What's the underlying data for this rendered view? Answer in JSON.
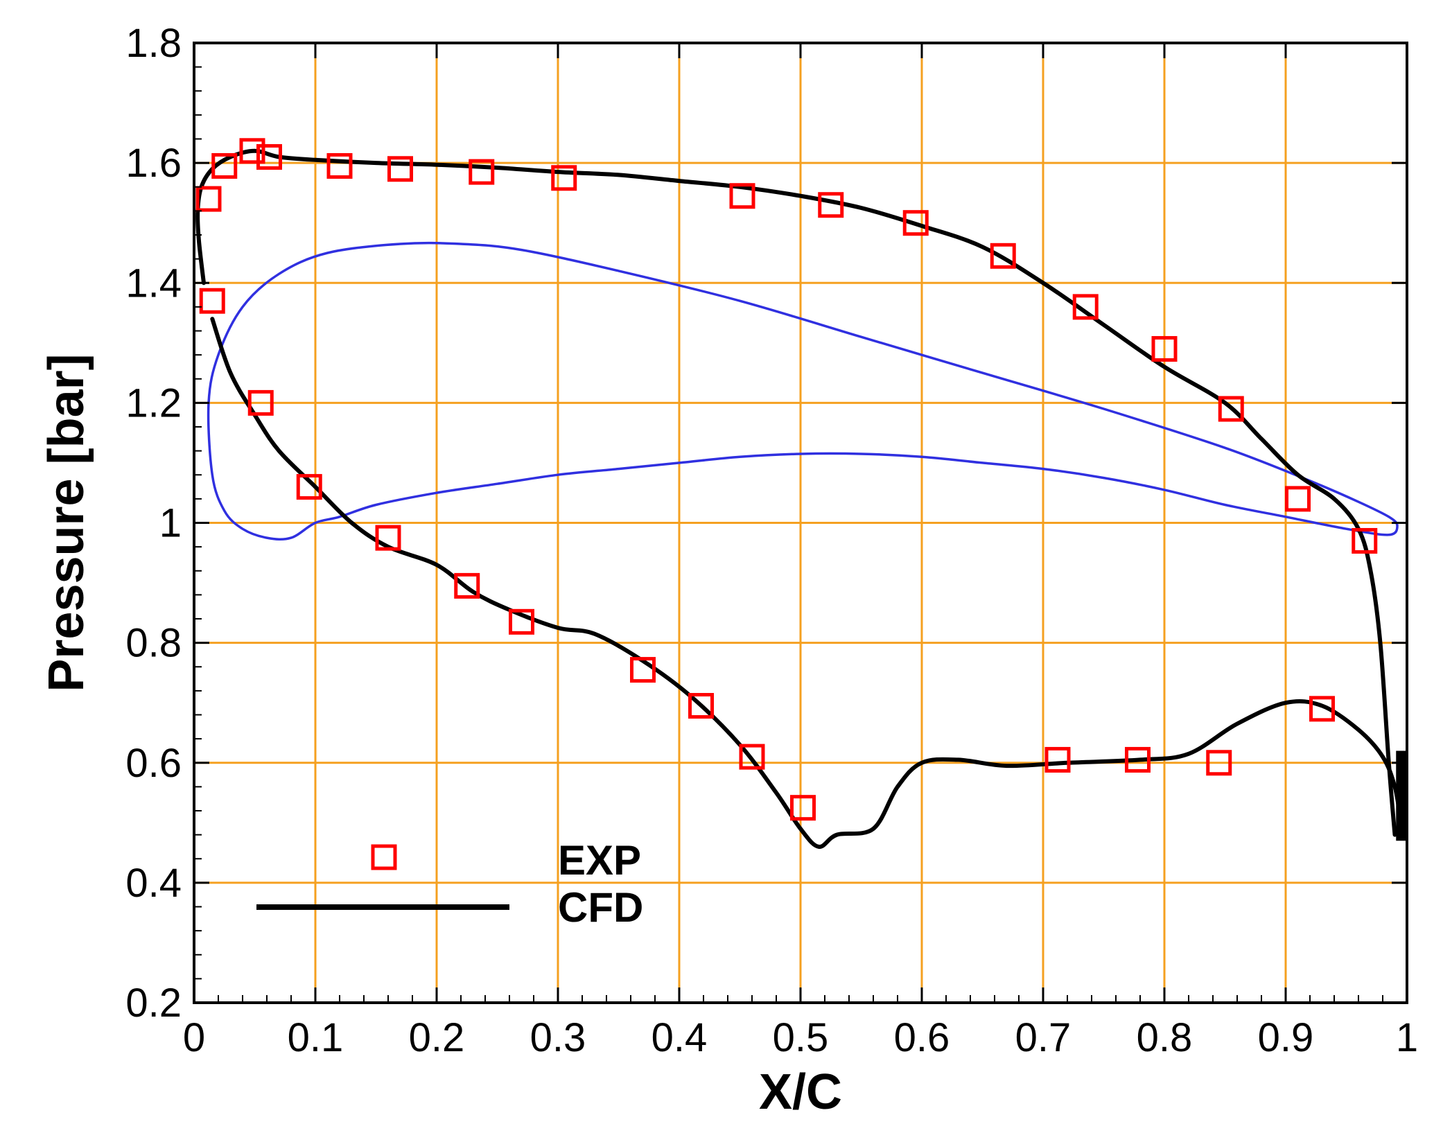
{
  "chart_data": {
    "type": "line",
    "title": "",
    "xlabel": "X/C",
    "ylabel": "Pressure [bar]",
    "xlim": [
      0,
      1
    ],
    "ylim": [
      0.2,
      1.8
    ],
    "x_ticks": [
      "0",
      "0.1",
      "0.2",
      "0.3",
      "0.4",
      "0.5",
      "0.6",
      "0.7",
      "0.8",
      "0.9",
      "1"
    ],
    "y_ticks": [
      "0.2",
      "0.4",
      "0.6",
      "0.8",
      "1",
      "1.2",
      "1.4",
      "1.6",
      "1.8"
    ],
    "grid": true,
    "legend_position": "bottom-left",
    "legend": [
      {
        "label": "EXP",
        "marker": "square",
        "color": "#ff0000"
      },
      {
        "label": "CFD",
        "marker": "line",
        "color": "#000000"
      }
    ],
    "colors": {
      "grid": "#f5a020",
      "exp": "#ff0000",
      "cfd": "#000000",
      "profile": "#3030e0"
    },
    "series": [
      {
        "name": "EXP",
        "style": "markers",
        "points": [
          [
            0.012,
            1.54
          ],
          [
            0.025,
            1.595
          ],
          [
            0.048,
            1.62
          ],
          [
            0.062,
            1.61
          ],
          [
            0.12,
            1.595
          ],
          [
            0.17,
            1.59
          ],
          [
            0.237,
            1.585
          ],
          [
            0.305,
            1.575
          ],
          [
            0.452,
            1.545
          ],
          [
            0.525,
            1.53
          ],
          [
            0.595,
            1.5
          ],
          [
            0.667,
            1.445
          ],
          [
            0.735,
            1.36
          ],
          [
            0.8,
            1.29
          ],
          [
            0.855,
            1.19
          ],
          [
            0.91,
            1.04
          ],
          [
            0.965,
            0.97
          ],
          [
            0.015,
            1.37
          ],
          [
            0.055,
            1.2
          ],
          [
            0.095,
            1.06
          ],
          [
            0.16,
            0.975
          ],
          [
            0.225,
            0.895
          ],
          [
            0.27,
            0.835
          ],
          [
            0.37,
            0.755
          ],
          [
            0.418,
            0.695
          ],
          [
            0.46,
            0.61
          ],
          [
            0.502,
            0.525
          ],
          [
            0.712,
            0.605
          ],
          [
            0.778,
            0.605
          ],
          [
            0.845,
            0.6
          ],
          [
            0.93,
            0.69
          ]
        ]
      },
      {
        "name": "CFD",
        "style": "line",
        "segments": [
          [
            [
              0.99,
              0.48
            ],
            [
              0.985,
              0.6
            ],
            [
              0.978,
              0.8
            ],
            [
              0.97,
              0.92
            ],
            [
              0.96,
              0.99
            ],
            [
              0.94,
              1.04
            ],
            [
              0.91,
              1.08
            ],
            [
              0.88,
              1.14
            ],
            [
              0.85,
              1.2
            ],
            [
              0.8,
              1.26
            ],
            [
              0.75,
              1.33
            ],
            [
              0.7,
              1.4
            ],
            [
              0.65,
              1.46
            ],
            [
              0.6,
              1.495
            ],
            [
              0.55,
              1.525
            ],
            [
              0.5,
              1.545
            ],
            [
              0.45,
              1.56
            ],
            [
              0.4,
              1.57
            ],
            [
              0.35,
              1.58
            ],
            [
              0.3,
              1.585
            ],
            [
              0.25,
              1.592
            ],
            [
              0.2,
              1.597
            ],
            [
              0.15,
              1.6
            ],
            [
              0.1,
              1.605
            ],
            [
              0.07,
              1.61
            ],
            [
              0.05,
              1.62
            ],
            [
              0.03,
              1.61
            ],
            [
              0.015,
              1.59
            ],
            [
              0.006,
              1.56
            ],
            [
              0.003,
              1.52
            ],
            [
              0.004,
              1.47
            ],
            [
              0.008,
              1.4
            ]
          ],
          [
            [
              0.015,
              1.34
            ],
            [
              0.03,
              1.25
            ],
            [
              0.05,
              1.18
            ],
            [
              0.07,
              1.12
            ],
            [
              0.1,
              1.06
            ],
            [
              0.13,
              1.0
            ],
            [
              0.16,
              0.96
            ],
            [
              0.2,
              0.93
            ],
            [
              0.23,
              0.885
            ],
            [
              0.26,
              0.855
            ],
            [
              0.3,
              0.825
            ],
            [
              0.33,
              0.815
            ],
            [
              0.37,
              0.77
            ],
            [
              0.41,
              0.71
            ],
            [
              0.45,
              0.63
            ],
            [
              0.48,
              0.55
            ],
            [
              0.5,
              0.49
            ],
            [
              0.515,
              0.46
            ],
            [
              0.53,
              0.48
            ],
            [
              0.56,
              0.49
            ],
            [
              0.58,
              0.56
            ],
            [
              0.6,
              0.6
            ],
            [
              0.63,
              0.605
            ],
            [
              0.67,
              0.595
            ],
            [
              0.72,
              0.6
            ],
            [
              0.78,
              0.605
            ],
            [
              0.82,
              0.615
            ],
            [
              0.86,
              0.665
            ],
            [
              0.9,
              0.7
            ],
            [
              0.93,
              0.695
            ],
            [
              0.96,
              0.655
            ],
            [
              0.98,
              0.61
            ],
            [
              0.99,
              0.56
            ],
            [
              0.995,
              0.5
            ]
          ]
        ]
      },
      {
        "name": "",
        "style": "line",
        "closed": true,
        "points": [
          [
            0.985,
            0.98
          ],
          [
            0.95,
            0.99
          ],
          [
            0.9,
            1.01
          ],
          [
            0.85,
            1.03
          ],
          [
            0.8,
            1.055
          ],
          [
            0.75,
            1.075
          ],
          [
            0.7,
            1.09
          ],
          [
            0.65,
            1.1
          ],
          [
            0.6,
            1.11
          ],
          [
            0.55,
            1.115
          ],
          [
            0.5,
            1.115
          ],
          [
            0.45,
            1.11
          ],
          [
            0.4,
            1.1
          ],
          [
            0.35,
            1.09
          ],
          [
            0.3,
            1.08
          ],
          [
            0.25,
            1.065
          ],
          [
            0.2,
            1.05
          ],
          [
            0.15,
            1.03
          ],
          [
            0.12,
            1.01
          ],
          [
            0.1,
            1.0
          ],
          [
            0.08,
            0.975
          ],
          [
            0.06,
            0.975
          ],
          [
            0.04,
            0.99
          ],
          [
            0.025,
            1.02
          ],
          [
            0.015,
            1.08
          ],
          [
            0.012,
            1.2
          ],
          [
            0.02,
            1.28
          ],
          [
            0.04,
            1.36
          ],
          [
            0.07,
            1.415
          ],
          [
            0.11,
            1.45
          ],
          [
            0.17,
            1.465
          ],
          [
            0.22,
            1.465
          ],
          [
            0.27,
            1.455
          ],
          [
            0.35,
            1.42
          ],
          [
            0.45,
            1.37
          ],
          [
            0.55,
            1.31
          ],
          [
            0.65,
            1.25
          ],
          [
            0.75,
            1.19
          ],
          [
            0.85,
            1.125
          ],
          [
            0.92,
            1.07
          ],
          [
            0.96,
            1.035
          ],
          [
            0.985,
            1.01
          ],
          [
            0.992,
            0.995
          ]
        ]
      }
    ]
  }
}
